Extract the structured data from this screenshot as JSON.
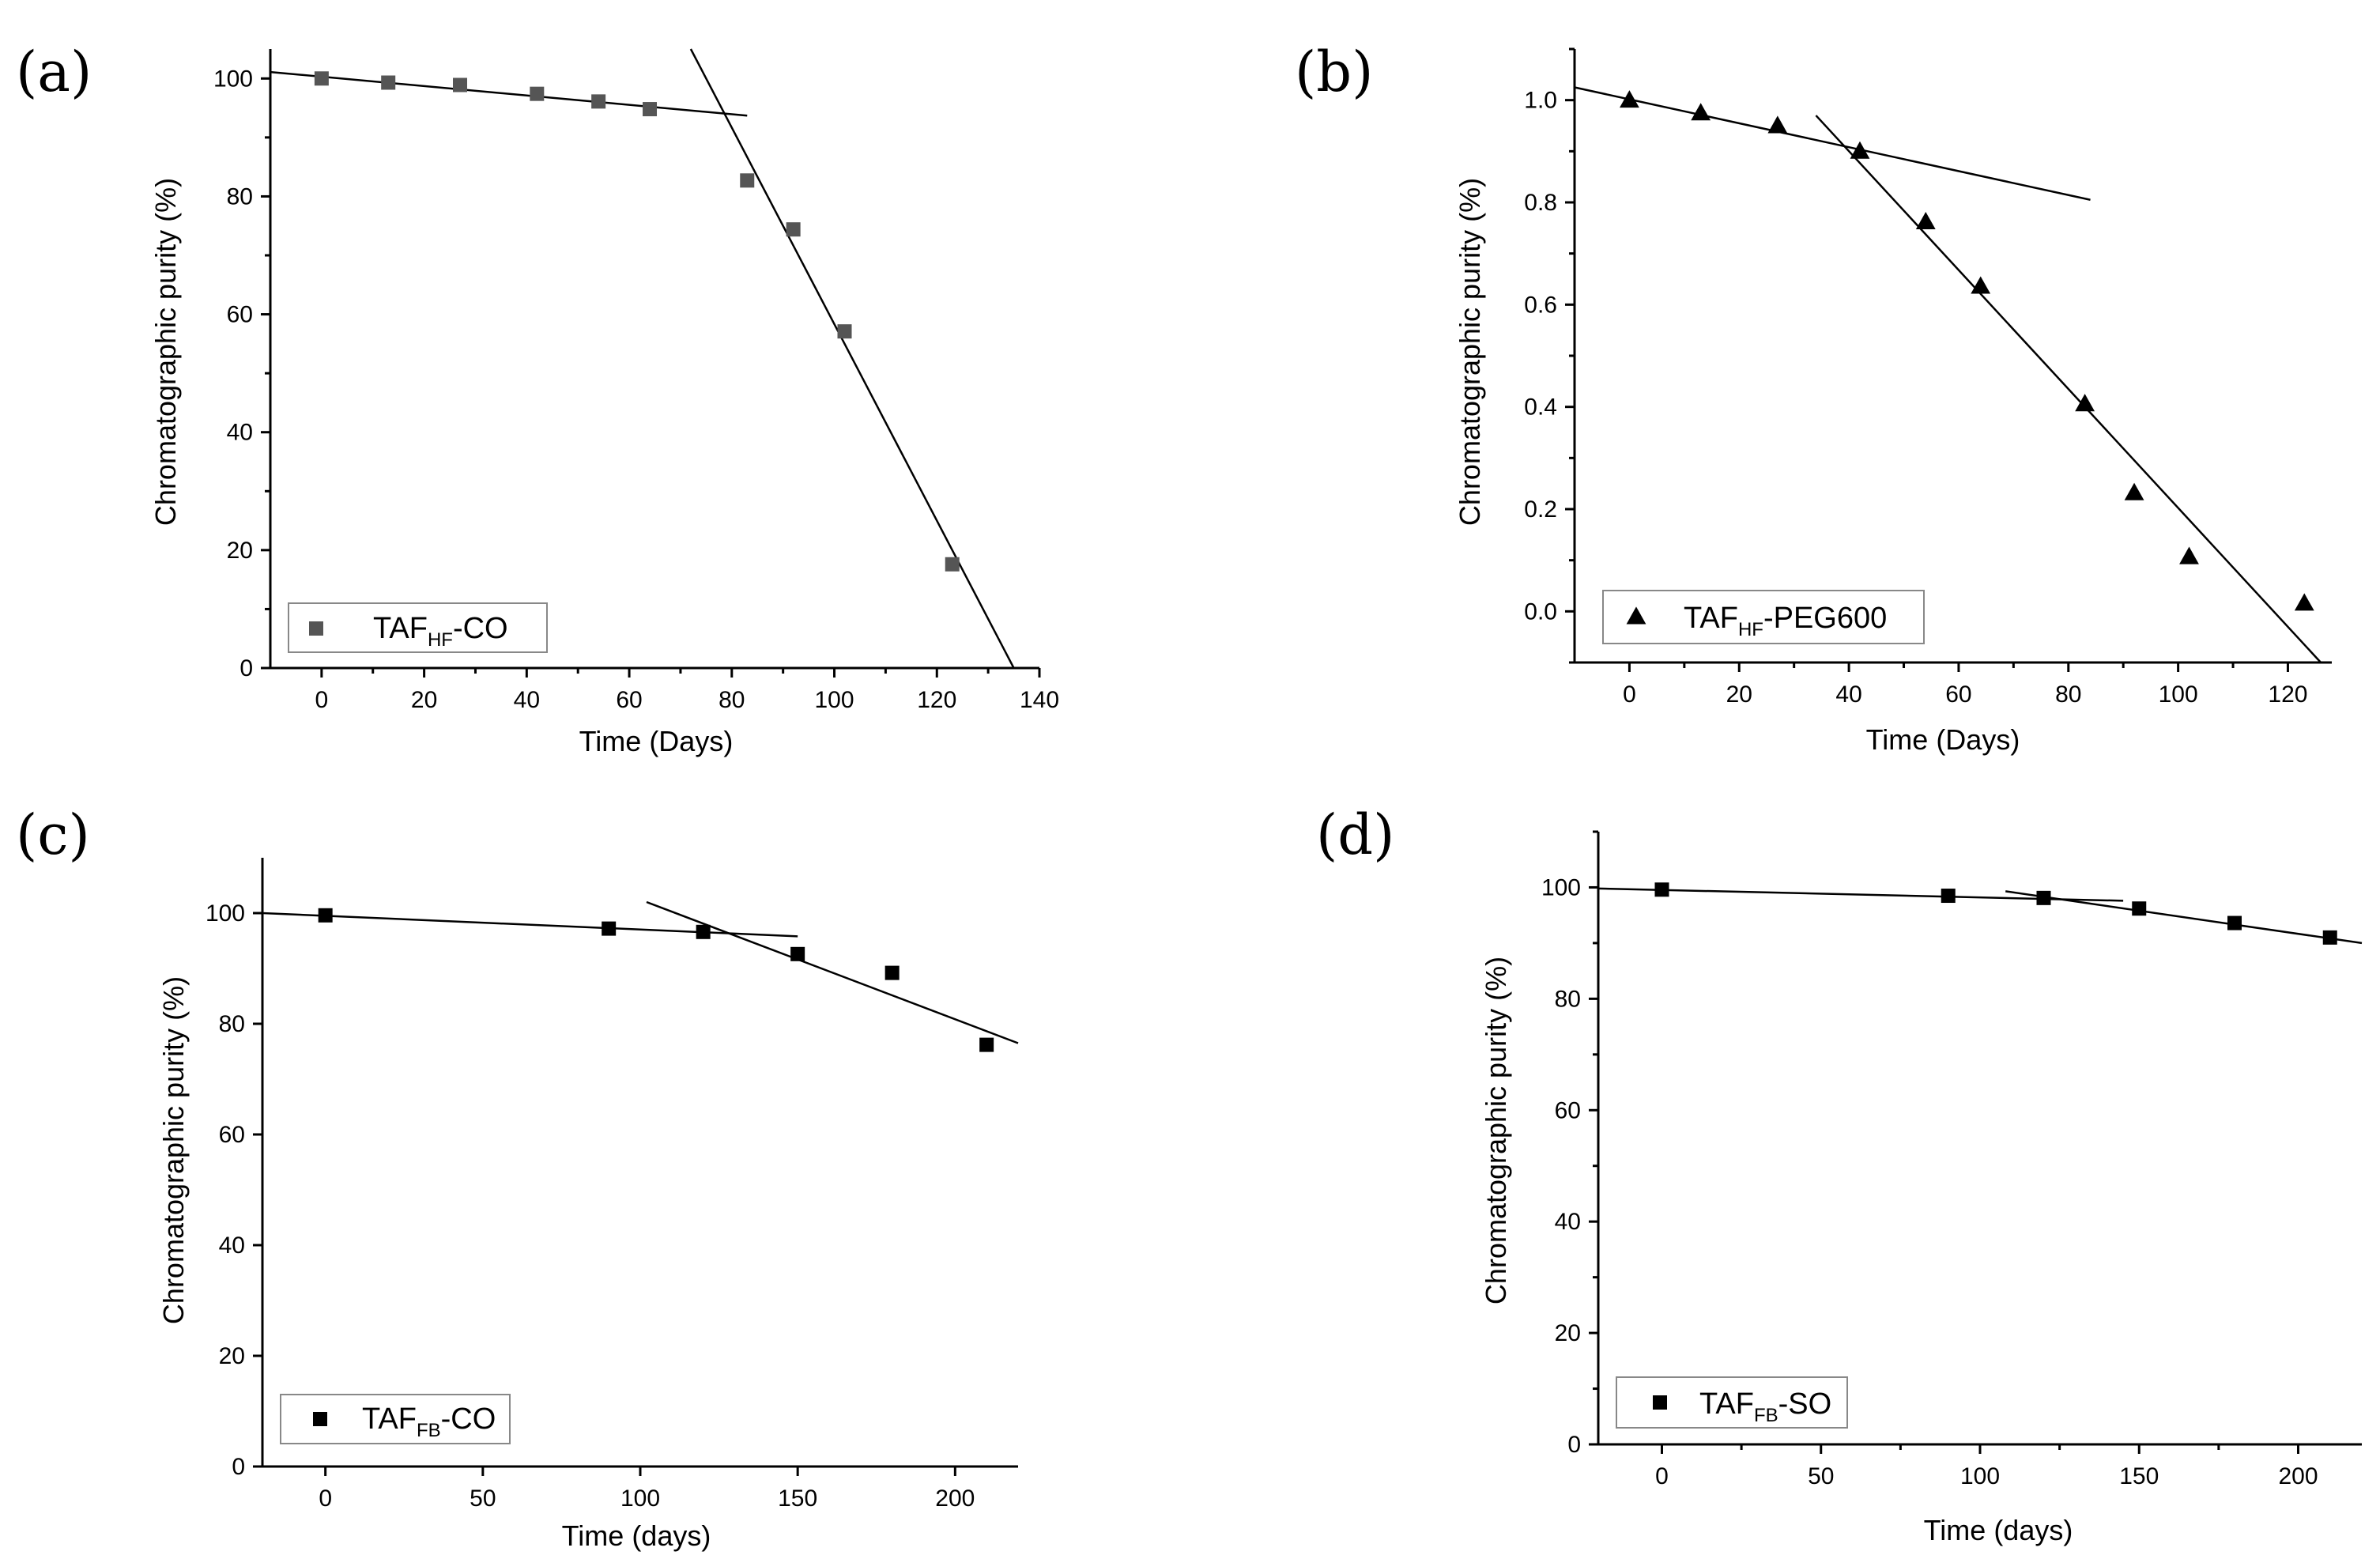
{
  "chart_data": [
    {
      "type": "scatter",
      "panel_label": "(a)",
      "xlabel": "Time (Days)",
      "ylabel": "Chromatographic purity (%)",
      "xlim": [
        -10,
        140
      ],
      "ylim": [
        0,
        105
      ],
      "xticks": [
        0,
        20,
        40,
        60,
        80,
        100,
        120,
        140
      ],
      "yticks": [
        0,
        20,
        40,
        60,
        80,
        100
      ],
      "tick_decimals": 0,
      "minor_ticks": true,
      "marker": "square",
      "marker_color": "#555555",
      "series": [
        {
          "name": "TAF-HF-CO",
          "x": [
            0,
            13,
            27,
            42,
            54,
            64,
            83,
            92,
            102,
            123
          ],
          "y": [
            100,
            99.3,
            98.9,
            97.4,
            96.1,
            94.8,
            82.7,
            74.4,
            57.1,
            17.6
          ]
        }
      ],
      "fit_lines": [
        {
          "x": [
            -10,
            83
          ],
          "y": [
            101.1,
            93.7
          ]
        },
        {
          "x": [
            72,
            135
          ],
          "y": [
            105,
            0
          ]
        }
      ],
      "legend": {
        "main": "TAF",
        "sub": "HF",
        "suffix": "-CO",
        "placement": "bottom-left"
      }
    },
    {
      "type": "scatter",
      "panel_label": "(b)",
      "xlabel": "Time (Days)",
      "ylabel": "Chromatographic purity (%)",
      "xlim": [
        -10,
        128
      ],
      "ylim": [
        -0.1,
        1.1
      ],
      "xticks": [
        0,
        20,
        40,
        60,
        80,
        100,
        120
      ],
      "yticks": [
        0.0,
        0.2,
        0.4,
        0.6,
        0.8,
        1.0
      ],
      "tick_decimals": 1,
      "minor_ticks": true,
      "marker": "triangle",
      "marker_color": "#000000",
      "series": [
        {
          "name": "TAF-HF-PEG600",
          "x": [
            0,
            13,
            27,
            42,
            54,
            64,
            83,
            92,
            102,
            123
          ],
          "y": [
            1.0,
            0.975,
            0.95,
            0.9,
            0.762,
            0.636,
            0.406,
            0.232,
            0.107,
            0.016
          ]
        }
      ],
      "fit_lines": [
        {
          "x": [
            -10,
            84
          ],
          "y": [
            1.025,
            0.805
          ]
        },
        {
          "x": [
            34,
            126
          ],
          "y": [
            0.97,
            -0.1
          ]
        }
      ],
      "legend": {
        "main": "TAF",
        "sub": "HF",
        "suffix": "-PEG600",
        "placement": "bottom-left"
      }
    },
    {
      "type": "scatter",
      "panel_label": "(c)",
      "xlabel": "Time (days)",
      "ylabel": "Chromatographic purity (%)",
      "xlim": [
        -20,
        220
      ],
      "ylim": [
        0,
        110
      ],
      "xticks": [
        0,
        50,
        100,
        150,
        200
      ],
      "yticks": [
        0,
        20,
        40,
        60,
        80,
        100
      ],
      "tick_decimals": 0,
      "minor_ticks": false,
      "marker": "square",
      "marker_color": "#000000",
      "series": [
        {
          "name": "TAF-FB-CO",
          "x": [
            0,
            90,
            120,
            150,
            180,
            210
          ],
          "y": [
            99.6,
            97.2,
            96.6,
            92.6,
            89.2,
            76.2
          ]
        }
      ],
      "fit_lines": [
        {
          "x": [
            -20,
            150
          ],
          "y": [
            100.0,
            95.8
          ]
        },
        {
          "x": [
            102,
            220
          ],
          "y": [
            102.0,
            76.5
          ]
        }
      ],
      "legend": {
        "main": "TAF",
        "sub": "FB",
        "suffix": "-CO",
        "placement": "bottom-left"
      }
    },
    {
      "type": "scatter",
      "panel_label": "(d)",
      "xlabel": "Time (days)",
      "ylabel": "Chromatographic purity (%)",
      "xlim": [
        -20,
        220
      ],
      "ylim": [
        0,
        110
      ],
      "xticks": [
        0,
        50,
        100,
        150,
        200
      ],
      "yticks": [
        0,
        20,
        40,
        60,
        80,
        100
      ],
      "tick_decimals": 0,
      "minor_ticks": true,
      "marker": "square",
      "marker_color": "#000000",
      "series": [
        {
          "name": "TAF-FB-SO",
          "x": [
            0,
            90,
            120,
            150,
            180,
            210
          ],
          "y": [
            99.6,
            98.5,
            98.1,
            96.2,
            93.6,
            91.0
          ]
        }
      ],
      "fit_lines": [
        {
          "x": [
            -20,
            145
          ],
          "y": [
            99.8,
            97.6
          ]
        },
        {
          "x": [
            108,
            220
          ],
          "y": [
            99.3,
            90.0
          ]
        }
      ],
      "legend": {
        "main": "TAF",
        "sub": "FB",
        "suffix": "-SO",
        "placement": "bottom-left"
      }
    }
  ]
}
